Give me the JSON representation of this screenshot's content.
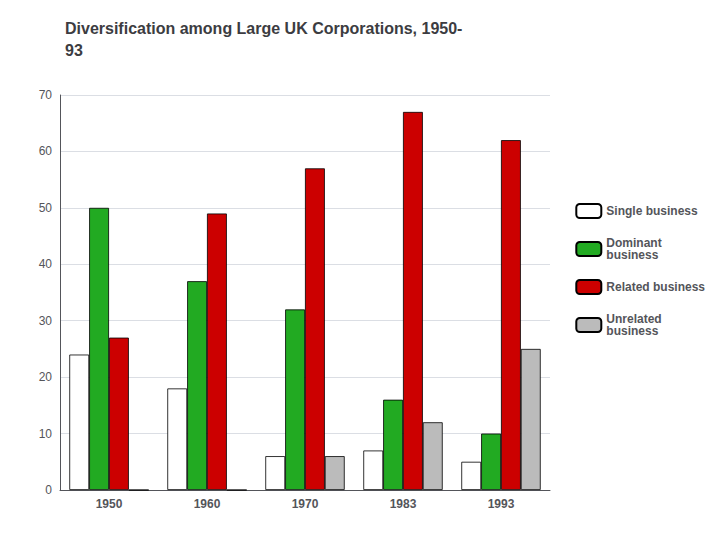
{
  "chart_data": {
    "type": "bar",
    "title": "Diversification among Large UK Corporations, 1950-\n93",
    "categories": [
      "1950",
      "1960",
      "1970",
      "1983",
      "1993"
    ],
    "series": [
      {
        "name": "Single business",
        "color": "#FFFFFF",
        "values": [
          24,
          18,
          6,
          7,
          5
        ]
      },
      {
        "name": "Dominant\nbusiness",
        "color": "#22AA22",
        "values": [
          50,
          37,
          32,
          16,
          10
        ]
      },
      {
        "name": "Related business",
        "color": "#CC0000",
        "values": [
          27,
          49,
          57,
          67,
          62
        ]
      },
      {
        "name": "Unrelated\nbusiness",
        "color": "#BBBBBB",
        "values": [
          0,
          0,
          6,
          12,
          25
        ]
      }
    ],
    "ylim": [
      0,
      70
    ],
    "yticks": [
      0,
      10,
      20,
      30,
      40,
      50,
      60,
      70
    ],
    "grid": true,
    "legend": "right"
  }
}
